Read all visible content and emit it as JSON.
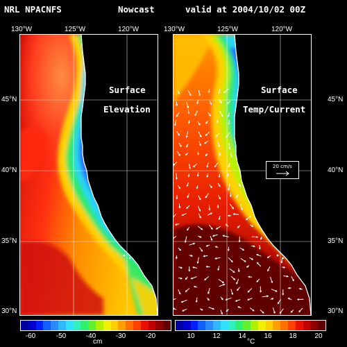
{
  "header": {
    "model": "NRL NPACNFS",
    "product": "Nowcast",
    "valid": "valid at 2004/10/02 00Z"
  },
  "lon_labels": [
    "130°W",
    "125°W",
    "120°W"
  ],
  "lat_labels": [
    "45°N",
    "40°N",
    "35°N",
    "30°N"
  ],
  "left_panel": {
    "title_line1": "Surface",
    "title_line2": "Elevation"
  },
  "right_panel": {
    "title_line1": "Surface",
    "title_line2": "Temp/Current",
    "vector_scale_label": "20 cm/s"
  },
  "left_colorbar": {
    "ticks": [
      "-60",
      "-50",
      "-40",
      "-30",
      "-20"
    ],
    "unit": "cm"
  },
  "right_colorbar": {
    "ticks": [
      "10",
      "12",
      "14",
      "16",
      "18",
      "20"
    ],
    "unit": "°C"
  },
  "colors": {
    "background": "#000000",
    "land": "#000000",
    "coast": "#ffffff",
    "grid": "#ffffff"
  }
}
